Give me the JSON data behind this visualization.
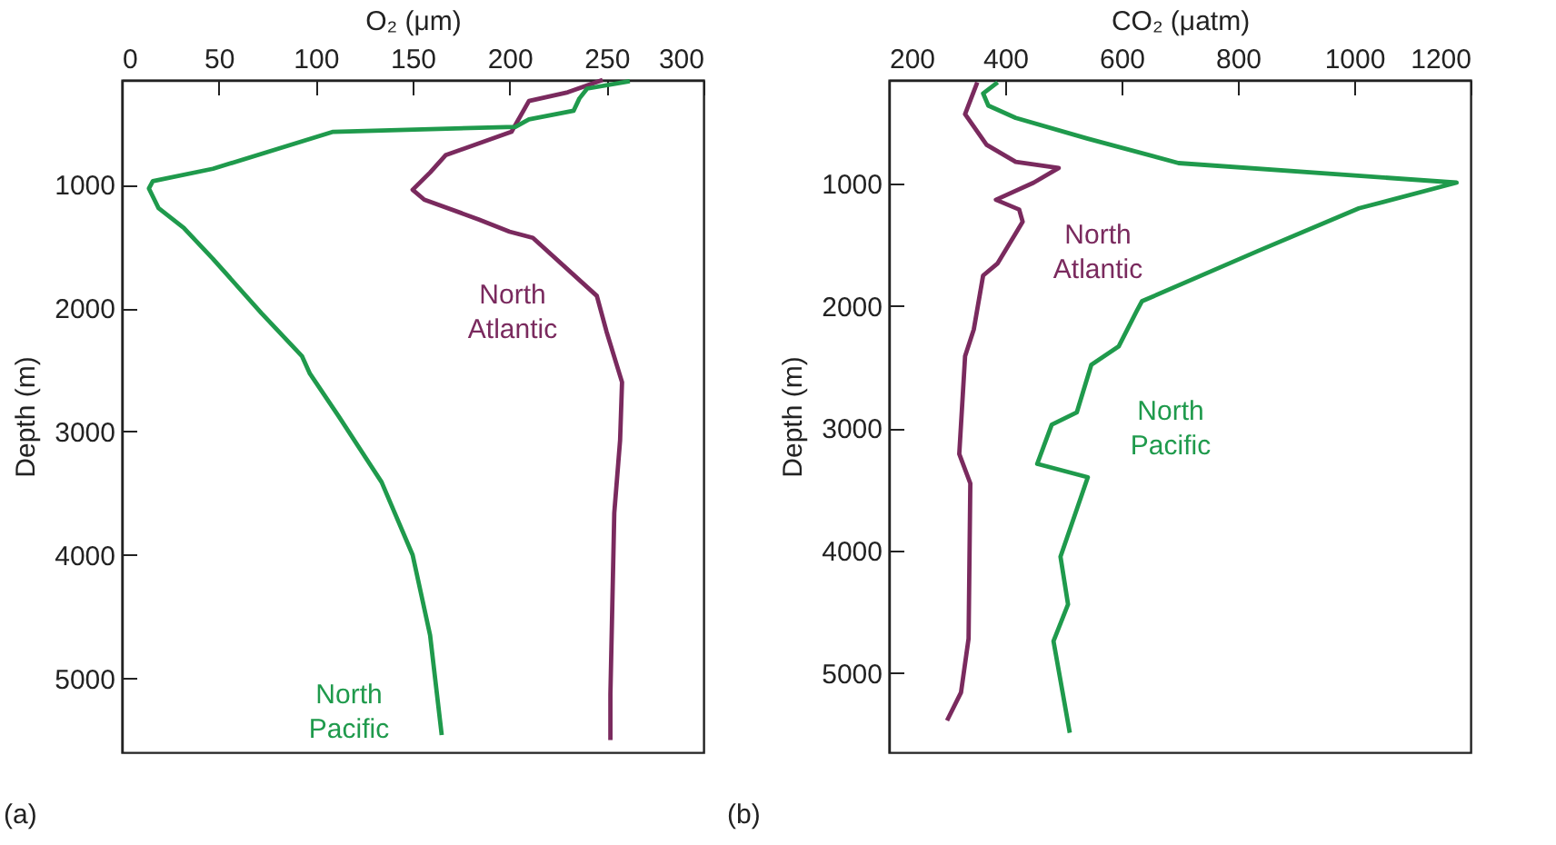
{
  "chart_data": [
    {
      "type": "line",
      "xlabel": "O₂ (μm)",
      "ylabel": "Depth (m)",
      "xlim": [
        0,
        300
      ],
      "xticks": [
        0,
        50,
        100,
        150,
        200,
        250,
        300
      ],
      "ylim": [
        5600,
        150
      ],
      "yticks": [
        1000,
        2000,
        3000,
        4000,
        5000
      ],
      "grid": false,
      "marker": "none",
      "line_style": "solid",
      "series": [
        {
          "color": "#7a2a5e",
          "x": [
            248,
            230,
            210,
            201,
            167,
            159,
            150,
            156,
            184,
            200,
            212,
            245,
            250,
            258,
            257,
            254,
            252,
            252
          ],
          "values": [
            150,
            250,
            320,
            570,
            760,
            900,
            1040,
            1120,
            1280,
            1380,
            1430,
            1900,
            2190,
            2600,
            3070,
            3660,
            5130,
            5500
          ]
        },
        {
          "color": "#1f9a4c",
          "x": [
            262,
            240,
            236,
            233,
            210,
            203,
            109,
            47,
            16,
            14,
            19,
            32,
            47,
            72,
            93,
            97,
            112,
            134,
            150,
            159,
            165
          ],
          "values": [
            160,
            220,
            300,
            400,
            470,
            530,
            570,
            870,
            970,
            1030,
            1190,
            1350,
            1600,
            2040,
            2390,
            2530,
            2880,
            3410,
            4000,
            4650,
            5460
          ]
        }
      ],
      "annotations": [
        "North Atlantic",
        "North Pacific",
        "(a)"
      ]
    },
    {
      "type": "line",
      "xlabel": "CO₂ (μatm)",
      "ylabel": "Depth (m)",
      "xlim": [
        200,
        1200
      ],
      "xticks": [
        200,
        400,
        600,
        800,
        1000,
        1200
      ],
      "ylim": [
        5650,
        150
      ],
      "yticks": [
        1000,
        2000,
        3000,
        4000,
        5000
      ],
      "grid": false,
      "marker": "none",
      "line_style": "solid",
      "series": [
        {
          "color": "#7a2a5e",
          "x": [
            352,
            331,
            368,
            418,
            492,
            449,
            384,
            424,
            430,
            387,
            362,
            346,
            331,
            321,
            340,
            337,
            324,
            300
          ],
          "values": [
            170,
            430,
            680,
            820,
            870,
            990,
            1130,
            1210,
            1310,
            1650,
            1750,
            2190,
            2410,
            3210,
            3450,
            4720,
            5160,
            5390
          ]
        },
        {
          "color": "#1f9a4c",
          "x": [
            387,
            362,
            371,
            418,
            542,
            698,
            1176,
            1008,
            834,
            635,
            626,
            595,
            548,
            523,
            480,
            455,
            542,
            495,
            508,
            483,
            511
          ],
          "values": [
            170,
            260,
            360,
            460,
            630,
            830,
            990,
            1200,
            1550,
            1960,
            2040,
            2330,
            2480,
            2870,
            2970,
            3290,
            3400,
            4050,
            4440,
            4740,
            5490
          ]
        }
      ],
      "annotations": [
        "North Atlantic",
        "North Pacific",
        "(b)"
      ]
    }
  ]
}
